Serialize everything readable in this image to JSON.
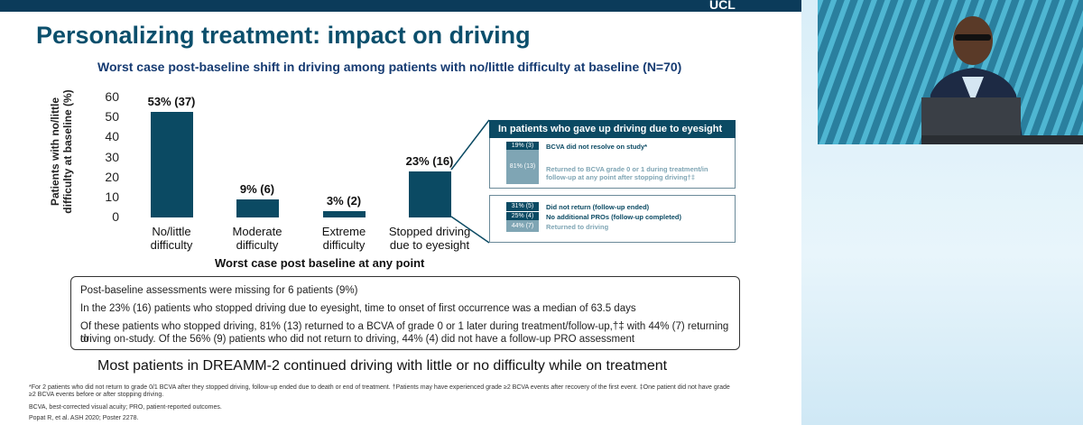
{
  "slide": {
    "logo": "UCL",
    "title": "Personalizing treatment: impact on driving",
    "subtitle": "Worst case post-baseline shift in driving among patients with no/little difficulty at baseline (N=70)",
    "conclusion": "Most patients in DREAMM-2 continued driving with little or no difficulty while on treatment"
  },
  "chart_data": {
    "type": "bar",
    "categories": [
      "No/little difficulty",
      "Moderate difficulty",
      "Extreme difficulty",
      "Stopped driving due to eyesight"
    ],
    "category_lines": [
      [
        "No/little",
        "difficulty"
      ],
      [
        "Moderate",
        "difficulty"
      ],
      [
        "Extreme",
        "difficulty"
      ],
      [
        "Stopped driving",
        "due to eyesight"
      ]
    ],
    "values": [
      53,
      9,
      3,
      23
    ],
    "data_labels": [
      "53% (37)",
      "9% (6)",
      "3% (2)",
      "23% (16)"
    ],
    "ylabel": "Patients with no/little difficulty at baseline (%)",
    "ylabel_lines": [
      "Patients with no/little",
      "difficulty at baseline (%)"
    ],
    "xlabel": "Worst case post baseline at any point",
    "ylim": [
      0,
      60
    ],
    "yticks": [
      "60",
      "50",
      "40",
      "30",
      "20",
      "10",
      "0"
    ],
    "bar_color": "#0b4a63"
  },
  "right_panel": {
    "header": "In patients who gave up driving due to eyesight",
    "box1": [
      {
        "pct": "19% (3)",
        "text": "BCVA did not resolve on study*",
        "color": "#0b4a63"
      },
      {
        "pct": "81% (13)",
        "text": "Returned to BCVA grade 0 or 1 during treatment/in follow-up at any point after stopping driving†‡",
        "color": "#7fa5b4"
      }
    ],
    "box2": [
      {
        "pct": "31% (5)",
        "text": "Did not return (follow-up ended)",
        "color": "#0b4a63"
      },
      {
        "pct": "25% (4)",
        "text": "No additional PROs (follow-up completed)",
        "color": "#0b4a63"
      },
      {
        "pct": "44% (7)",
        "text": "Returned to driving",
        "color": "#7fa5b4"
      }
    ]
  },
  "notes": [
    "Post-baseline assessments were missing for 6 patients (9%)",
    "In the 23% (16) patients who stopped driving due to eyesight, time to onset of first occurrence was a median of 63.5 days",
    "Of these patients who stopped driving, 81% (13) returned to a BCVA of grade 0 or 1 later during treatment/follow-up,†‡ with 44% (7) returning to",
    "driving on-study. Of the 56% (9) patients who did not return to driving, 44% (4) did not have a follow-up PRO assessment"
  ],
  "footnotes": [
    "*For 2 patients who did not return to grade 0/1 BCVA after they stopped driving, follow-up ended due to death or end of treatment. †Patients may have experienced grade ≥2 BCVA events after recovery of the first event. ‡One patient did not have grade",
    "≥2 BCVA events before or after stopping driving.",
    "BCVA, best-corrected visual acuity; PRO, patient-reported outcomes.",
    "Popat R, et al. ASH 2020; Poster 2278."
  ],
  "colors": {
    "dark_teal": "#0b4a63",
    "light_teal": "#7fa5b4",
    "title_color": "#0b4f6c",
    "subtitle_color": "#163b72"
  }
}
